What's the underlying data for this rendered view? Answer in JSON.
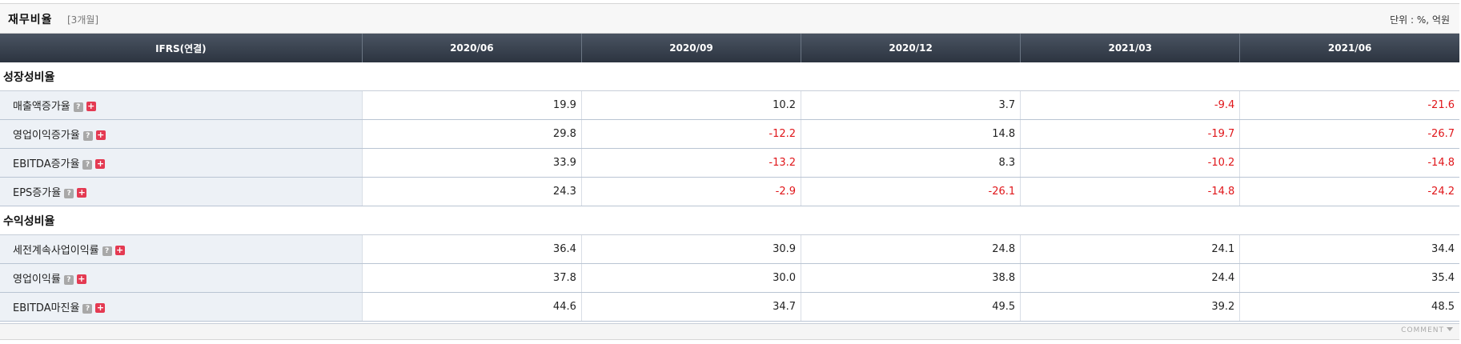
{
  "header": {
    "title": "재무비율",
    "period": "[3개월]",
    "unit": "단위 : %, 억원"
  },
  "table": {
    "columns": [
      "IFRS(연결)",
      "2020/06",
      "2020/09",
      "2020/12",
      "2021/03",
      "2021/06"
    ],
    "sections": [
      {
        "title": "성장성비율",
        "rows": [
          {
            "label": "매출액증가율",
            "values": [
              "19.9",
              "10.2",
              "3.7",
              "-9.4",
              "-21.6"
            ]
          },
          {
            "label": "영업이익증가율",
            "values": [
              "29.8",
              "-12.2",
              "14.8",
              "-19.7",
              "-26.7"
            ]
          },
          {
            "label": "EBITDA증가율",
            "values": [
              "33.9",
              "-13.2",
              "8.3",
              "-10.2",
              "-14.8"
            ]
          },
          {
            "label": "EPS증가율",
            "values": [
              "24.3",
              "-2.9",
              "-26.1",
              "-14.8",
              "-24.2"
            ]
          }
        ]
      },
      {
        "title": "수익성비율",
        "rows": [
          {
            "label": "세전계속사업이익률",
            "values": [
              "36.4",
              "30.9",
              "24.8",
              "24.1",
              "34.4"
            ]
          },
          {
            "label": "영업이익률",
            "values": [
              "37.8",
              "30.0",
              "38.8",
              "24.4",
              "35.4"
            ]
          },
          {
            "label": "EBITDA마진율",
            "values": [
              "44.6",
              "34.7",
              "49.5",
              "39.2",
              "48.5"
            ]
          }
        ]
      }
    ]
  },
  "icons": {
    "help_glyph": "?",
    "expand_glyph": "+",
    "help_icon": "question-icon",
    "expand_icon": "plus-icon"
  },
  "footer": {
    "comment_label": "COMMENT"
  },
  "colors": {
    "negative": "#e0161a",
    "header_bg": "#3a4350",
    "label_bg": "#edf1f6"
  }
}
